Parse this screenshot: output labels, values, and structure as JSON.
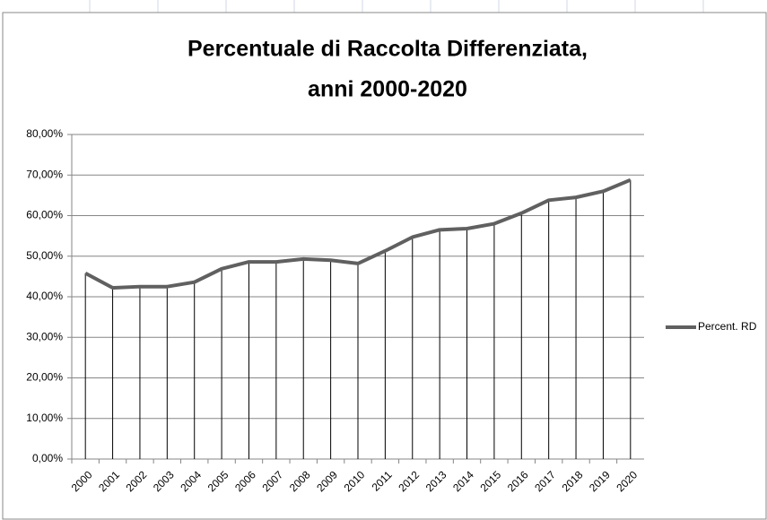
{
  "chart_data": {
    "type": "line",
    "title": [
      "Percentuale di Raccolta Differenziata,",
      "anni 2000-2020"
    ],
    "categories": [
      "2000",
      "2001",
      "2002",
      "2003",
      "2004",
      "2005",
      "2006",
      "2007",
      "2008",
      "2009",
      "2010",
      "2011",
      "2012",
      "2013",
      "2014",
      "2015",
      "2016",
      "2017",
      "2018",
      "2019",
      "2020"
    ],
    "series": [
      {
        "name": "Percent. RD",
        "color": "#606060",
        "values": [
          45.8,
          42.2,
          42.5,
          42.5,
          43.6,
          46.9,
          48.6,
          48.6,
          49.3,
          49.0,
          48.2,
          51.3,
          54.7,
          56.5,
          56.8,
          58.0,
          60.6,
          63.8,
          64.5,
          66.0,
          68.8
        ]
      }
    ],
    "ylim": [
      0,
      80
    ],
    "yticks": [
      {
        "value": 0,
        "label": "0,00%"
      },
      {
        "value": 10,
        "label": "10,00%"
      },
      {
        "value": 20,
        "label": "20,00%"
      },
      {
        "value": 30,
        "label": "30,00%"
      },
      {
        "value": 40,
        "label": "40,00%"
      },
      {
        "value": 50,
        "label": "50,00%"
      },
      {
        "value": 60,
        "label": "60,00%"
      },
      {
        "value": 70,
        "label": "70,00%"
      },
      {
        "value": 80,
        "label": "80,00%"
      }
    ],
    "grid": true,
    "drop_lines": true,
    "legend": "right"
  }
}
